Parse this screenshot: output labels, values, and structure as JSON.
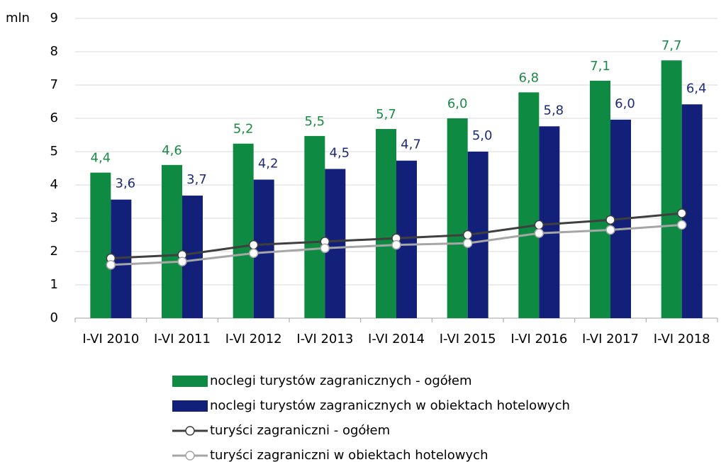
{
  "chart_data": {
    "type": "bar",
    "y_unit_label": "mln",
    "categories": [
      "I-VI 2010",
      "I-VI 2011",
      "I-VI 2012",
      "I-VI 2013",
      "I-VI 2014",
      "I-VI 2015",
      "I-VI 2016",
      "I-VI 2017",
      "I-VI 2018"
    ],
    "series": [
      {
        "name": "noclegi turystów zagranicznych - ogółem",
        "type": "bar",
        "color": "#0f8a43",
        "label_color": "#1a8a46",
        "values": [
          4.37,
          4.6,
          5.24,
          5.47,
          5.68,
          6.0,
          6.78,
          7.13,
          7.74
        ],
        "value_labels": [
          "4,4",
          "4,6",
          "5,2",
          "5,5",
          "5,7",
          "6,0",
          "6,8",
          "7,1",
          "7,7"
        ]
      },
      {
        "name": "noclegi turystów zagranicznych w obiektach hotelowych",
        "type": "bar",
        "color": "#12207a",
        "label_color": "#1c2a78",
        "values": [
          3.56,
          3.68,
          4.16,
          4.48,
          4.73,
          5.0,
          5.76,
          5.96,
          6.42
        ],
        "value_labels": [
          "3,6",
          "3,7",
          "4,2",
          "4,5",
          "4,7",
          "5,0",
          "5,8",
          "6,0",
          "6,4"
        ]
      },
      {
        "name": "turyści zagraniczni - ogółem",
        "type": "line",
        "color": "#3f3f3f",
        "values": [
          1.8,
          1.9,
          2.2,
          2.3,
          2.4,
          2.5,
          2.8,
          2.95,
          3.15
        ]
      },
      {
        "name": "turyści zagraniczni w obiektach hotelowych",
        "type": "line",
        "color": "#a6a6a6",
        "values": [
          1.6,
          1.7,
          1.95,
          2.1,
          2.2,
          2.25,
          2.55,
          2.65,
          2.8
        ]
      }
    ],
    "ylim": [
      0,
      9
    ],
    "yticks": [
      0,
      1,
      2,
      3,
      4,
      5,
      6,
      7,
      8,
      9
    ],
    "grid": true
  }
}
